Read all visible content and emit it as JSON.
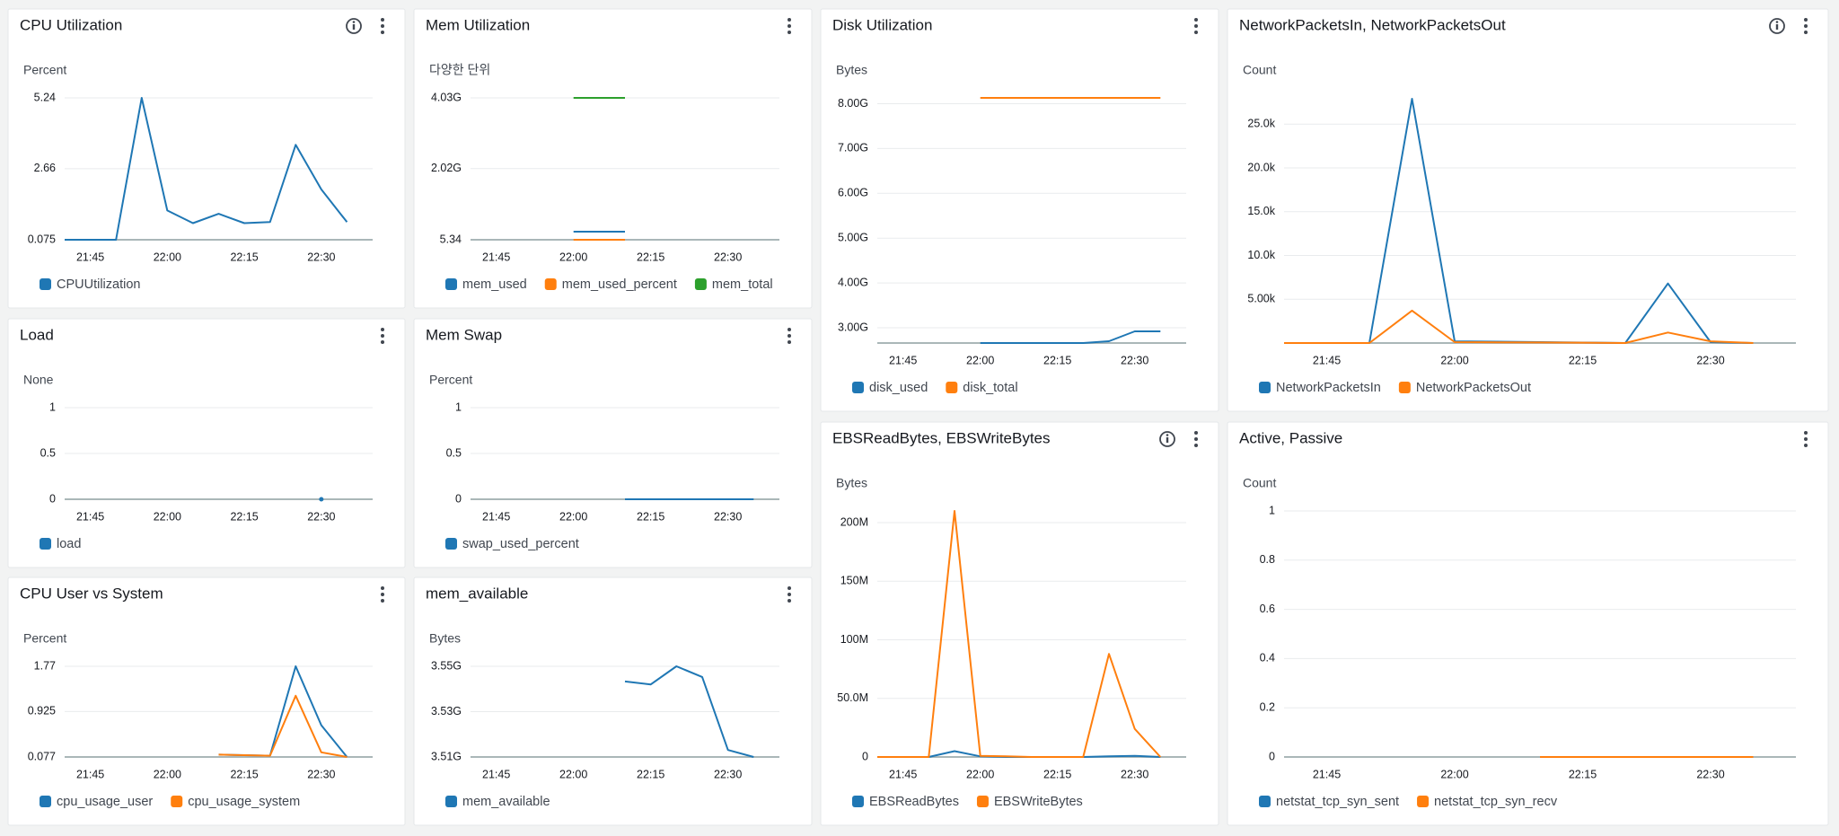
{
  "chart_data": [
    {
      "type": "line",
      "title": "CPU Utilization",
      "y_label": "Percent",
      "grid": true,
      "x": [
        "21:40",
        "21:45",
        "21:50",
        "21:55",
        "22:00",
        "22:05",
        "22:10",
        "22:15",
        "22:20",
        "22:25",
        "22:30",
        "22:35"
      ],
      "xlim": [
        "21:40",
        "22:40"
      ],
      "xticks": [
        "21:45",
        "22:00",
        "22:15",
        "22:30"
      ],
      "ylim": [
        0.075,
        5.24
      ],
      "yticks": [
        0.075,
        2.66,
        5.24
      ],
      "series": [
        {
          "name": "CPUUtilization",
          "color": "#1f77b4",
          "values": [
            0.075,
            0.075,
            0.075,
            5.24,
            1.14,
            0.68,
            1.02,
            0.68,
            0.72,
            3.53,
            1.91,
            0.72
          ]
        }
      ]
    },
    {
      "type": "line",
      "title": "Mem Utilization",
      "y_label": "다양한 단위",
      "grid": true,
      "x": [
        "22:00",
        "22:05",
        "22:10"
      ],
      "xlim": [
        "21:40",
        "22:40"
      ],
      "xticks": [
        "21:45",
        "22:00",
        "22:15",
        "22:30"
      ],
      "ylim": [
        5.34,
        4030000000
      ],
      "yticks": [
        5.34,
        {
          "value": 2020000000,
          "label": "2.02G"
        },
        {
          "value": 4030000000,
          "label": "4.03G"
        }
      ],
      "series": [
        {
          "name": "mem_used",
          "color": "#1f77b4",
          "values": [
            230000000,
            230000000,
            230000000
          ]
        },
        {
          "name": "mem_used_percent",
          "color": "#ff7f0e",
          "values": [
            20,
            20,
            20
          ]
        },
        {
          "name": "mem_total",
          "color": "#2ca02c",
          "values": [
            4030000000,
            4030000000,
            4030000000
          ]
        }
      ]
    },
    {
      "type": "line",
      "title": "Disk Utilization",
      "y_label": "Bytes",
      "grid": true,
      "x": [
        "22:00",
        "22:05",
        "22:10",
        "22:15",
        "22:20",
        "22:25",
        "22:30",
        "22:35"
      ],
      "xlim": [
        "21:40",
        "22:40"
      ],
      "xticks": [
        "21:45",
        "22:00",
        "22:15",
        "22:30"
      ],
      "ylim": [
        2660000000,
        8130000000
      ],
      "yticks": [
        {
          "value": 3000000000,
          "label": "3.00G"
        },
        {
          "value": 4000000000,
          "label": "4.00G"
        },
        {
          "value": 5000000000,
          "label": "5.00G"
        },
        {
          "value": 6000000000,
          "label": "6.00G"
        },
        {
          "value": 7000000000,
          "label": "7.00G"
        },
        {
          "value": 8000000000,
          "label": "8.00G"
        }
      ],
      "series": [
        {
          "name": "disk_used",
          "color": "#1f77b4",
          "values": [
            2660000000,
            2660000000,
            2660000000,
            2660000000,
            2660000000,
            2700000000,
            2920000000,
            2920000000
          ]
        },
        {
          "name": "disk_total",
          "color": "#ff7f0e",
          "values": [
            8130000000,
            8130000000,
            8130000000,
            8130000000,
            8130000000,
            8130000000,
            8130000000,
            8130000000
          ]
        }
      ]
    },
    {
      "type": "line",
      "title": "NetworkPacketsIn, NetworkPacketsOut",
      "y_label": "Count",
      "grid": true,
      "x": [
        "21:40",
        "21:45",
        "21:50",
        "21:55",
        "22:00",
        "22:05",
        "22:10",
        "22:15",
        "22:20",
        "22:25",
        "22:30",
        "22:35"
      ],
      "xlim": [
        "21:40",
        "22:40"
      ],
      "xticks": [
        "21:45",
        "22:00",
        "22:15",
        "22:30"
      ],
      "ylim": [
        0,
        28000
      ],
      "yticks": [
        {
          "value": 5000,
          "label": "5.00k"
        },
        {
          "value": 10000,
          "label": "10.0k"
        },
        {
          "value": 15000,
          "label": "15.0k"
        },
        {
          "value": 20000,
          "label": "20.0k"
        },
        {
          "value": 25000,
          "label": "25.0k"
        }
      ],
      "series": [
        {
          "name": "NetworkPacketsIn",
          "color": "#1f77b4",
          "values": [
            0,
            0,
            0,
            27900,
            200,
            150,
            100,
            50,
            0,
            6800,
            100,
            0
          ]
        },
        {
          "name": "NetworkPacketsOut",
          "color": "#ff7f0e",
          "values": [
            0,
            0,
            0,
            3700,
            100,
            80,
            60,
            40,
            0,
            1200,
            200,
            0
          ]
        }
      ]
    },
    {
      "type": "line",
      "title": "Load",
      "y_label": "None",
      "grid": true,
      "x": [
        "22:30"
      ],
      "xlim": [
        "21:40",
        "22:40"
      ],
      "xticks": [
        "21:45",
        "22:00",
        "22:15",
        "22:30"
      ],
      "ylim": [
        0,
        1
      ],
      "yticks": [
        0,
        0.5,
        1
      ],
      "series": [
        {
          "name": "load",
          "color": "#1f77b4",
          "values": [
            0
          ]
        }
      ]
    },
    {
      "type": "line",
      "title": "Mem Swap",
      "y_label": "Percent",
      "grid": true,
      "x": [
        "22:10",
        "22:15",
        "22:20",
        "22:25",
        "22:30",
        "22:35"
      ],
      "xlim": [
        "21:40",
        "22:40"
      ],
      "xticks": [
        "21:45",
        "22:00",
        "22:15",
        "22:30"
      ],
      "ylim": [
        0,
        1
      ],
      "yticks": [
        0,
        0.5,
        1
      ],
      "series": [
        {
          "name": "swap_used_percent",
          "color": "#1f77b4",
          "values": [
            0,
            0,
            0,
            0,
            0,
            0
          ]
        }
      ]
    },
    {
      "type": "line",
      "title": "EBSReadBytes, EBSWriteBytes",
      "y_label": "Bytes",
      "grid": true,
      "x": [
        "21:40",
        "21:45",
        "21:50",
        "21:55",
        "22:00",
        "22:05",
        "22:10",
        "22:15",
        "22:20",
        "22:25",
        "22:30",
        "22:35"
      ],
      "xlim": [
        "21:40",
        "22:40"
      ],
      "xticks": [
        "21:45",
        "22:00",
        "22:15",
        "22:30"
      ],
      "ylim": [
        0,
        210000000
      ],
      "yticks": [
        0,
        {
          "value": 50000000,
          "label": "50.0M"
        },
        {
          "value": 100000000,
          "label": "100M"
        },
        {
          "value": 150000000,
          "label": "150M"
        },
        {
          "value": 200000000,
          "label": "200M"
        }
      ],
      "series": [
        {
          "name": "EBSReadBytes",
          "color": "#1f77b4",
          "values": [
            0,
            0,
            0,
            5000000,
            500000,
            0,
            0,
            0,
            0,
            500000,
            1000000,
            0
          ]
        },
        {
          "name": "EBSWriteBytes",
          "color": "#ff7f0e",
          "values": [
            0,
            0,
            0,
            210000000,
            1000000,
            500000,
            0,
            0,
            0,
            88000000,
            24000000,
            0
          ]
        }
      ]
    },
    {
      "type": "line",
      "title": "Active, Passive",
      "y_label": "Count",
      "grid": true,
      "x": [
        "22:10",
        "22:15",
        "22:20",
        "22:25",
        "22:30",
        "22:35"
      ],
      "xlim": [
        "21:40",
        "22:40"
      ],
      "xticks": [
        "21:45",
        "22:00",
        "22:15",
        "22:30"
      ],
      "ylim": [
        0,
        1
      ],
      "yticks": [
        0,
        0.2,
        0.4,
        0.6,
        0.8,
        1
      ],
      "series": [
        {
          "name": "netstat_tcp_syn_sent",
          "color": "#1f77b4",
          "values": [
            0,
            0,
            0,
            0,
            0,
            0
          ]
        },
        {
          "name": "netstat_tcp_syn_recv",
          "color": "#ff7f0e",
          "values": [
            0,
            0,
            0,
            0,
            0,
            0
          ]
        }
      ]
    },
    {
      "type": "line",
      "title": "CPU User vs System",
      "y_label": "Percent",
      "grid": true,
      "x": [
        "22:10",
        "22:15",
        "22:20",
        "22:25",
        "22:30",
        "22:35"
      ],
      "xlim": [
        "21:40",
        "22:40"
      ],
      "xticks": [
        "21:45",
        "22:00",
        "22:15",
        "22:30"
      ],
      "ylim": [
        0.077,
        1.77
      ],
      "yticks": [
        0.077,
        0.925,
        1.77
      ],
      "series": [
        {
          "name": "cpu_usage_user",
          "color": "#1f77b4",
          "values": [
            0.12,
            0.11,
            0.1,
            1.77,
            0.67,
            0.077
          ]
        },
        {
          "name": "cpu_usage_system",
          "color": "#ff7f0e",
          "values": [
            0.12,
            0.11,
            0.1,
            1.22,
            0.165,
            0.077
          ]
        }
      ]
    },
    {
      "type": "line",
      "title": "mem_available",
      "y_label": "Bytes",
      "grid": true,
      "x": [
        "22:10",
        "22:15",
        "22:20",
        "22:25",
        "22:30",
        "22:35"
      ],
      "xlim": [
        "21:40",
        "22:40"
      ],
      "xticks": [
        "21:45",
        "22:00",
        "22:15",
        "22:30"
      ],
      "ylim": [
        3510000000,
        3550000000
      ],
      "yticks": [
        {
          "value": 3510000000,
          "label": "3.51G"
        },
        {
          "value": 3530000000,
          "label": "3.53G"
        },
        {
          "value": 3550000000,
          "label": "3.55G"
        }
      ],
      "series": [
        {
          "name": "mem_available",
          "color": "#1f77b4",
          "values": [
            3543300000,
            3542000000,
            3550000000,
            3545300000,
            3513100000,
            3510000000
          ]
        }
      ]
    }
  ]
}
